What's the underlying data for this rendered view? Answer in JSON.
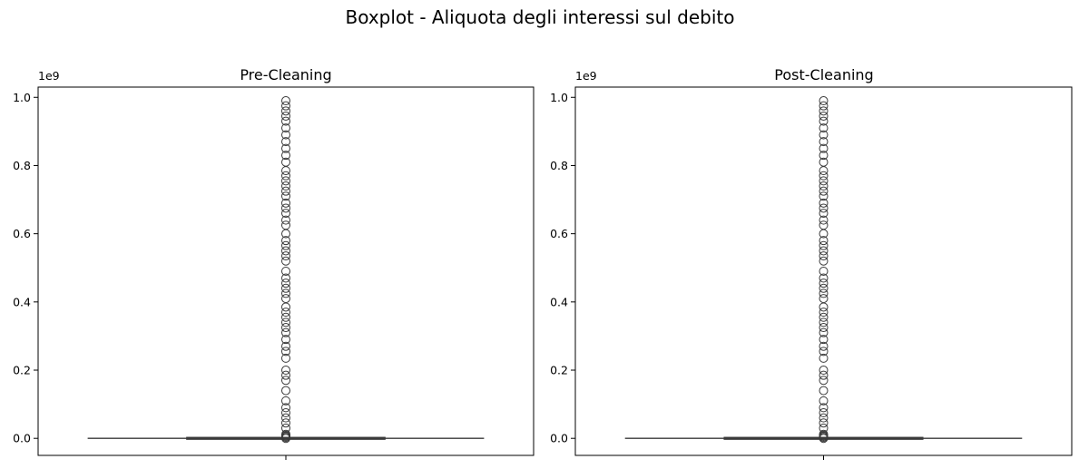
{
  "figure": {
    "suptitle": "Boxplot - Aliquota degli interessi sul debito"
  },
  "chart_data": [
    {
      "type": "boxplot",
      "title": "Pre-Cleaning",
      "xlabel": "",
      "ylabel": "",
      "y_offset_label": "1e9",
      "ylim": [
        -0.05,
        1.03
      ],
      "yticks": [
        0.0,
        0.2,
        0.4,
        0.6,
        0.8,
        1.0
      ],
      "ytick_labels": [
        "0.0",
        "0.2",
        "0.4",
        "0.6",
        "0.8",
        "1.0"
      ],
      "grid": false,
      "box": {
        "q1": 0.0,
        "median": 0.0,
        "q3": 0.0,
        "whisker_low": 0.0,
        "whisker_high": 0.0
      },
      "outliers": [
        0.0,
        0.003,
        0.006,
        0.009,
        0.012,
        0.03,
        0.045,
        0.06,
        0.075,
        0.09,
        0.11,
        0.14,
        0.17,
        0.185,
        0.2,
        0.235,
        0.255,
        0.27,
        0.29,
        0.31,
        0.325,
        0.34,
        0.355,
        0.37,
        0.385,
        0.41,
        0.425,
        0.44,
        0.455,
        0.47,
        0.49,
        0.52,
        0.535,
        0.55,
        0.565,
        0.58,
        0.6,
        0.625,
        0.64,
        0.66,
        0.675,
        0.69,
        0.71,
        0.725,
        0.74,
        0.755,
        0.77,
        0.785,
        0.81,
        0.83,
        0.85,
        0.87,
        0.89,
        0.91,
        0.93,
        0.945,
        0.96,
        0.975,
        0.99
      ]
    },
    {
      "type": "boxplot",
      "title": "Post-Cleaning",
      "xlabel": "",
      "ylabel": "",
      "y_offset_label": "1e9",
      "ylim": [
        -0.05,
        1.03
      ],
      "yticks": [
        0.0,
        0.2,
        0.4,
        0.6,
        0.8,
        1.0
      ],
      "ytick_labels": [
        "0.0",
        "0.2",
        "0.4",
        "0.6",
        "0.8",
        "1.0"
      ],
      "grid": false,
      "box": {
        "q1": 0.0,
        "median": 0.0,
        "q3": 0.0,
        "whisker_low": 0.0,
        "whisker_high": 0.0
      },
      "outliers": [
        0.0,
        0.003,
        0.006,
        0.009,
        0.012,
        0.03,
        0.045,
        0.06,
        0.075,
        0.09,
        0.11,
        0.14,
        0.17,
        0.185,
        0.2,
        0.235,
        0.255,
        0.27,
        0.29,
        0.31,
        0.325,
        0.34,
        0.355,
        0.37,
        0.385,
        0.41,
        0.425,
        0.44,
        0.455,
        0.47,
        0.49,
        0.52,
        0.535,
        0.55,
        0.565,
        0.58,
        0.6,
        0.625,
        0.64,
        0.66,
        0.675,
        0.69,
        0.71,
        0.725,
        0.74,
        0.755,
        0.77,
        0.785,
        0.81,
        0.83,
        0.85,
        0.87,
        0.89,
        0.91,
        0.93,
        0.945,
        0.96,
        0.975,
        0.99
      ]
    }
  ]
}
